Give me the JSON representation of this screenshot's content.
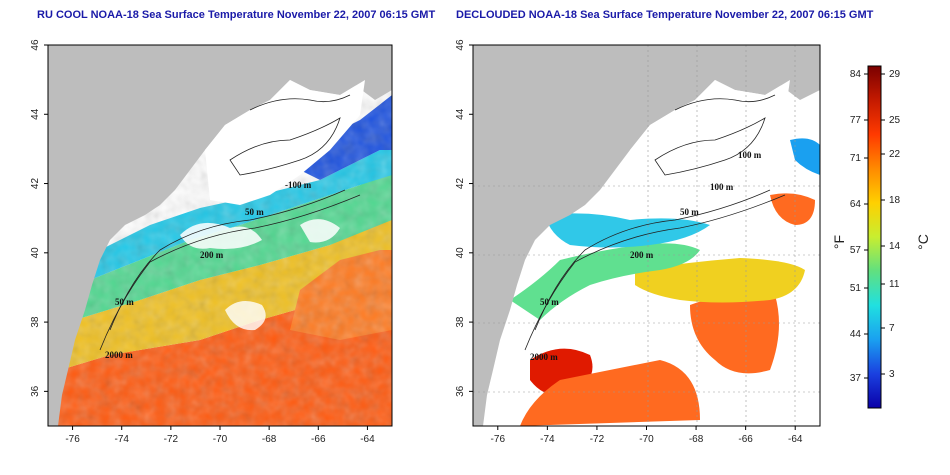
{
  "titles": {
    "left": "RU COOL NOAA-18 Sea Surface Temperature November 22, 2007 06:15 GMT",
    "right": "DECLOUDED NOAA-18 Sea Surface Temperature November 22, 2007 06:15 GMT"
  },
  "axes": {
    "lon_ticks": [
      "-76",
      "-74",
      "-72",
      "-70",
      "-68",
      "-66",
      "-64"
    ],
    "lat_ticks": [
      "46",
      "44",
      "42",
      "40",
      "38",
      "36"
    ]
  },
  "contour_labels": {
    "left": [
      "-100 m",
      "50 m",
      "200 m",
      "50 m",
      "2000 m"
    ],
    "right": [
      "100 m",
      "100 m",
      "50 m",
      "200 m",
      "50 m",
      "2000 m"
    ]
  },
  "colorbar": {
    "fahrenheit_ticks": [
      "84",
      "77",
      "71",
      "64",
      "57",
      "51",
      "44",
      "37"
    ],
    "celsius_ticks": [
      "29",
      "25",
      "22",
      "18",
      "14",
      "11",
      "7",
      "3"
    ],
    "fahrenheit_unit": "°F",
    "celsius_unit": "°C",
    "colors": [
      "#7a0000",
      "#c41a00",
      "#ff3a00",
      "#ff8a00",
      "#ffd000",
      "#c8ee30",
      "#60e080",
      "#20e0e0",
      "#1aa0f0",
      "#1a40e0",
      "#0a00a8"
    ]
  },
  "colors": {
    "land": "#bdbdbd",
    "cloud": "#ffffff",
    "title": "#1a1aa8"
  }
}
